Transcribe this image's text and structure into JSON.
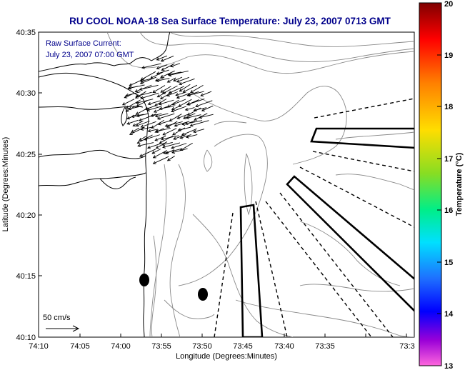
{
  "title": "RU COOL  NOAA-18  Sea Surface Temperature:  July 23, 2007 0713 GMT",
  "legend": {
    "line1": "Raw Surface Current:",
    "line2": "July 23, 2007 07:00 GMT",
    "scale_label": "50 cm/s"
  },
  "axes": {
    "xlabel": "Longitude (Degrees:Minutes)",
    "ylabel": "Latitude (Degrees:Minutes)",
    "x_ticks": [
      "74:10",
      "74:05",
      "74:00",
      "73:55",
      "73:50",
      "73:45",
      "73:40",
      "73:35",
      "73:3"
    ],
    "y_ticks": [
      "40:35",
      "40:30",
      "40:25",
      "40:20",
      "40:15",
      "40:10"
    ]
  },
  "colorbar": {
    "label": "Temperature (°C)",
    "ticks": [
      "20",
      "19",
      "18",
      "17",
      "16",
      "15",
      "14",
      "13"
    ],
    "colors": [
      "#8b0000",
      "#ff0000",
      "#ff8c00",
      "#ffd700",
      "#9acd32",
      "#00ff7f",
      "#00ffff",
      "#1e90ff",
      "#0000ff",
      "#9400d3",
      "#ff00ff",
      "#ff66cc"
    ]
  },
  "chart_data": {
    "type": "map",
    "title": "RU COOL  NOAA-18  Sea Surface Temperature:  July 23, 2007 0713 GMT",
    "xlabel": "Longitude (Degrees:Minutes)",
    "ylabel": "Latitude (Degrees:Minutes)",
    "x_range_minutes_west": [
      610,
      573
    ],
    "y_range_minutes_north": [
      2410,
      2435
    ],
    "colorbar_range": [
      13,
      20
    ],
    "current_reference": "50 cm/s",
    "markers": [
      {
        "lon": "73:58.8",
        "lat": "40:14.7"
      },
      {
        "lon": "73:52.2",
        "lat": "40:13.5"
      }
    ]
  }
}
